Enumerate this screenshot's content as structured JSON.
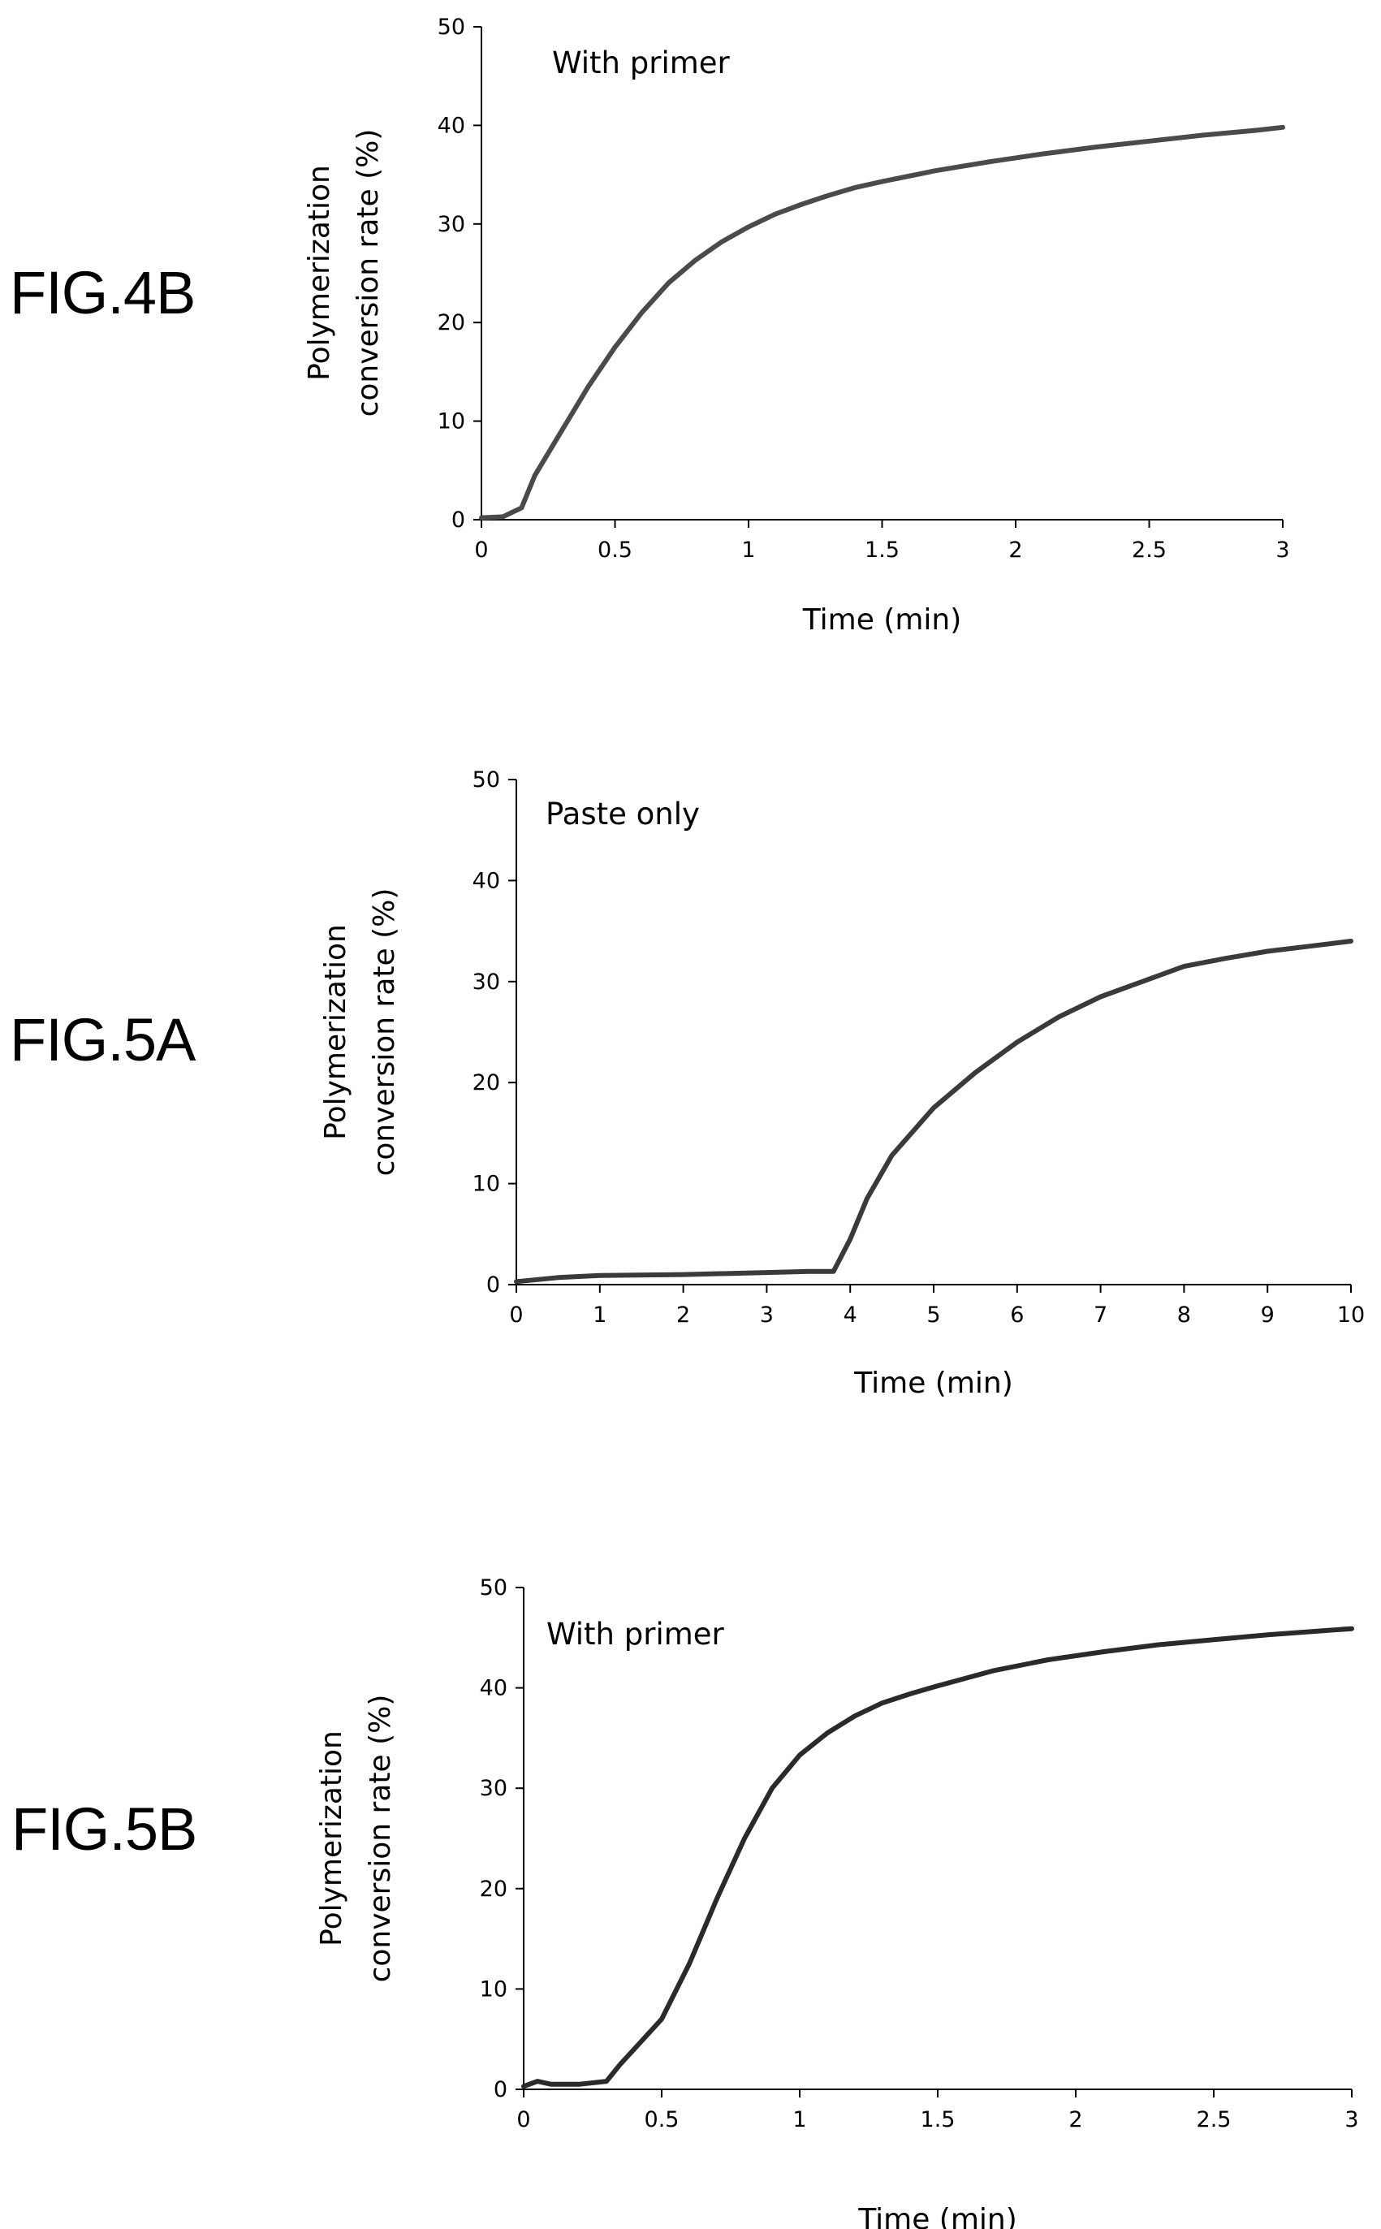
{
  "figures": [
    {
      "label": "FIG.4B"
    },
    {
      "label": "FIG.5A"
    },
    {
      "label": "FIG.5B"
    }
  ],
  "chart_data": [
    {
      "type": "line",
      "annotation": "With primer",
      "xlabel": "Time (min)",
      "ylabel_line1": "Polymerization",
      "ylabel_line2": "conversion rate (%)",
      "xlim": [
        0,
        3
      ],
      "ylim": [
        0,
        50
      ],
      "xticks": [
        "0",
        "0.5",
        "1",
        "1.5",
        "2",
        "2.5",
        "3"
      ],
      "yticks": [
        "0",
        "10",
        "20",
        "30",
        "40",
        "50"
      ],
      "grid": false,
      "line_color": "#4a4a4a",
      "series": [
        {
          "x": [
            0,
            0.08,
            0.15,
            0.2,
            0.3,
            0.4,
            0.5,
            0.6,
            0.7,
            0.8,
            0.9,
            1.0,
            1.1,
            1.2,
            1.3,
            1.4,
            1.5,
            1.7,
            1.9,
            2.1,
            2.3,
            2.5,
            2.7,
            2.9,
            3.0
          ],
          "y": [
            0.2,
            0.3,
            1.2,
            4.5,
            9.0,
            13.5,
            17.5,
            21.0,
            24.0,
            26.3,
            28.2,
            29.7,
            31.0,
            32.0,
            32.9,
            33.7,
            34.3,
            35.4,
            36.3,
            37.1,
            37.8,
            38.4,
            39.0,
            39.5,
            39.8
          ]
        }
      ]
    },
    {
      "type": "line",
      "annotation": "Paste only",
      "xlabel": "Time (min)",
      "ylabel_line1": "Polymerization",
      "ylabel_line2": "conversion rate (%)",
      "xlim": [
        0,
        10
      ],
      "ylim": [
        0,
        50
      ],
      "xticks": [
        "0",
        "1",
        "2",
        "3",
        "4",
        "5",
        "6",
        "7",
        "8",
        "9",
        "10"
      ],
      "yticks": [
        "0",
        "10",
        "20",
        "30",
        "40",
        "50"
      ],
      "grid": false,
      "line_color": "#3a3a3a",
      "series": [
        {
          "x": [
            0,
            0.5,
            1,
            2,
            3,
            3.5,
            3.8,
            4.0,
            4.2,
            4.5,
            5.0,
            5.5,
            6.0,
            6.5,
            7.0,
            7.5,
            8.0,
            8.5,
            9.0,
            9.5,
            10.0
          ],
          "y": [
            0.3,
            0.7,
            0.9,
            1.0,
            1.2,
            1.3,
            1.3,
            4.5,
            8.5,
            12.8,
            17.5,
            21.0,
            24.0,
            26.5,
            28.5,
            30.0,
            31.5,
            32.3,
            33.0,
            33.5,
            34.0
          ]
        }
      ]
    },
    {
      "type": "line",
      "annotation": "With primer",
      "xlabel": "Time (min)",
      "ylabel_line1": "Polymerization",
      "ylabel_line2": "conversion rate (%)",
      "xlim": [
        0,
        3
      ],
      "ylim": [
        0,
        50
      ],
      "xticks": [
        "0",
        "0.5",
        "1",
        "1.5",
        "2",
        "2.5",
        "3"
      ],
      "yticks": [
        "0",
        "10",
        "20",
        "30",
        "40",
        "50"
      ],
      "grid": false,
      "line_color": "#2a2a2a",
      "series": [
        {
          "x": [
            0,
            0.05,
            0.1,
            0.2,
            0.3,
            0.35,
            0.4,
            0.5,
            0.6,
            0.7,
            0.8,
            0.9,
            1.0,
            1.1,
            1.2,
            1.3,
            1.4,
            1.5,
            1.7,
            1.9,
            2.1,
            2.3,
            2.5,
            2.7,
            2.9,
            3.0
          ],
          "y": [
            0.3,
            0.8,
            0.5,
            0.5,
            0.8,
            2.5,
            4.0,
            7.0,
            12.5,
            19.0,
            25.0,
            30.0,
            33.3,
            35.5,
            37.2,
            38.5,
            39.4,
            40.2,
            41.7,
            42.8,
            43.6,
            44.3,
            44.8,
            45.3,
            45.7,
            45.9
          ]
        }
      ]
    }
  ]
}
